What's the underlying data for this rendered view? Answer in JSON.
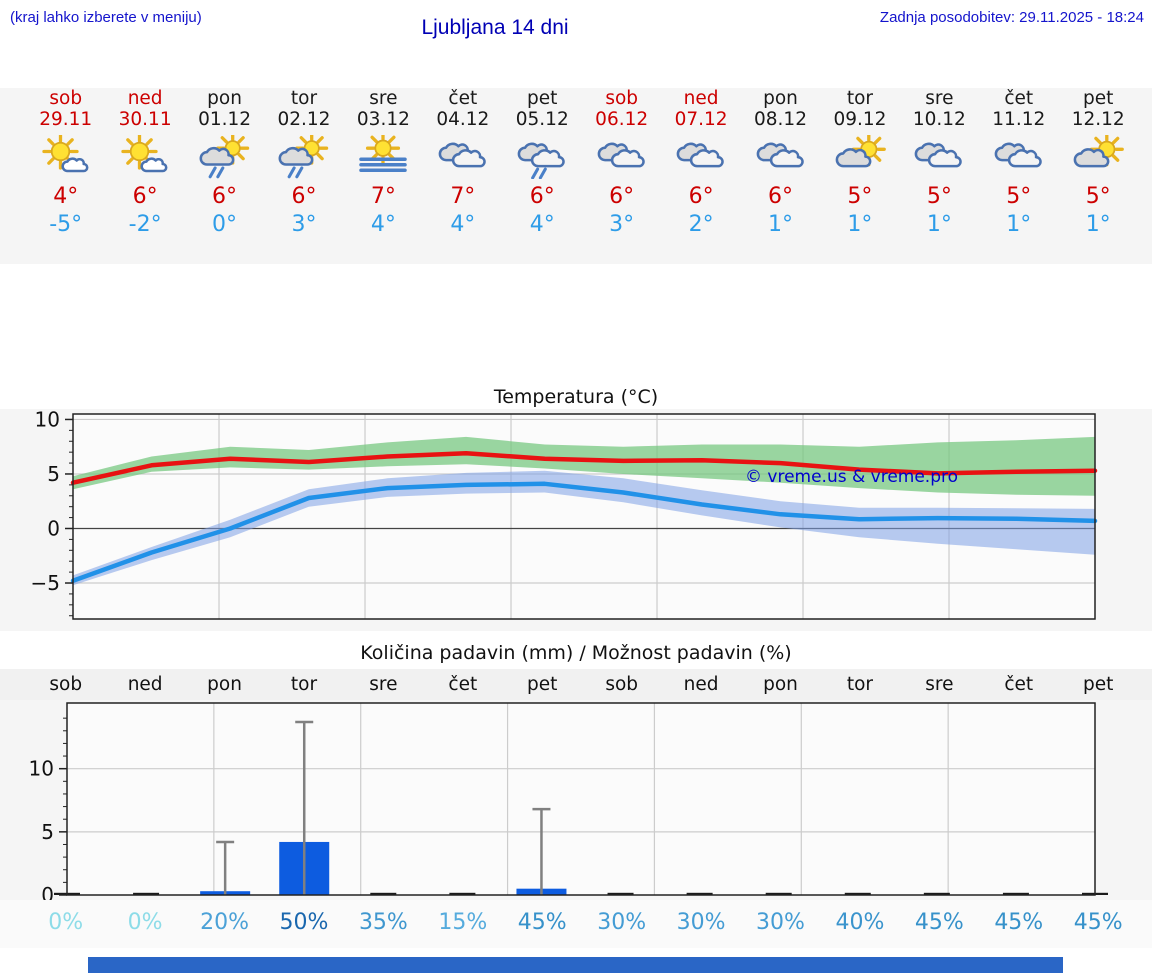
{
  "header": {
    "hint": "(kraj lahko izberete v meniju)",
    "title": "Ljubljana 14 dni",
    "updated": "Zadnja posodobitev: 29.11.2025 - 18:24"
  },
  "strip": {
    "days": [
      {
        "name": "sob",
        "date": "29.11",
        "holiday": true,
        "icon": "mostly-sunny",
        "high": "4°",
        "low": "-5°"
      },
      {
        "name": "ned",
        "date": "30.11",
        "holiday": true,
        "icon": "mostly-sunny",
        "high": "6°",
        "low": "-2°"
      },
      {
        "name": "pon",
        "date": "01.12",
        "holiday": false,
        "icon": "sun-rain",
        "high": "6°",
        "low": "0°"
      },
      {
        "name": "tor",
        "date": "02.12",
        "holiday": false,
        "icon": "sun-rain",
        "high": "6°",
        "low": "3°"
      },
      {
        "name": "sre",
        "date": "03.12",
        "holiday": false,
        "icon": "fog-sun",
        "high": "7°",
        "low": "4°"
      },
      {
        "name": "čet",
        "date": "04.12",
        "holiday": false,
        "icon": "cloudy",
        "high": "7°",
        "low": "4°"
      },
      {
        "name": "pet",
        "date": "05.12",
        "holiday": false,
        "icon": "rain",
        "high": "6°",
        "low": "4°"
      },
      {
        "name": "sob",
        "date": "06.12",
        "holiday": true,
        "icon": "cloudy",
        "high": "6°",
        "low": "3°"
      },
      {
        "name": "ned",
        "date": "07.12",
        "holiday": true,
        "icon": "cloudy",
        "high": "6°",
        "low": "2°"
      },
      {
        "name": "pon",
        "date": "08.12",
        "holiday": false,
        "icon": "cloudy",
        "high": "6°",
        "low": "1°"
      },
      {
        "name": "tor",
        "date": "09.12",
        "holiday": false,
        "icon": "sun-cloud",
        "high": "5°",
        "low": "1°"
      },
      {
        "name": "sre",
        "date": "10.12",
        "holiday": false,
        "icon": "cloudy",
        "high": "5°",
        "low": "1°"
      },
      {
        "name": "čet",
        "date": "11.12",
        "holiday": false,
        "icon": "cloudy",
        "high": "5°",
        "low": "1°"
      },
      {
        "name": "pet",
        "date": "12.12",
        "holiday": false,
        "icon": "sun-cloud",
        "high": "5°",
        "low": "1°"
      }
    ]
  },
  "chart_data": [
    {
      "type": "line",
      "title": "Temperatura (°C)",
      "ylim": [
        -8.3,
        10.5
      ],
      "yticks": [
        10,
        5,
        0,
        -5
      ],
      "categories": [
        "sob",
        "ned",
        "pon",
        "tor",
        "sre",
        "čet",
        "pet",
        "sob",
        "ned",
        "pon",
        "tor",
        "sre",
        "čet",
        "pet"
      ],
      "series": [
        {
          "name": "max-temp",
          "color": "#e81212",
          "values": [
            4.2,
            5.8,
            6.4,
            6.1,
            6.6,
            6.9,
            6.4,
            6.2,
            6.25,
            6.0,
            5.4,
            5.05,
            5.2,
            5.3
          ]
        },
        {
          "name": "min-temp",
          "color": "#2191e8",
          "values": [
            -4.8,
            -2.2,
            0.0,
            2.8,
            3.7,
            4.0,
            4.1,
            3.3,
            2.2,
            1.3,
            0.85,
            0.95,
            0.9,
            0.7
          ]
        }
      ],
      "bands": [
        {
          "name": "min-temp-range",
          "color": "rgba(125,160,230,0.55)",
          "top": [
            -4.3,
            -1.7,
            0.8,
            3.6,
            4.6,
            5.1,
            5.3,
            4.6,
            3.5,
            2.5,
            1.9,
            1.9,
            1.85,
            1.8
          ],
          "bottom": [
            -5.2,
            -2.9,
            -0.8,
            2.0,
            2.9,
            3.2,
            3.3,
            2.4,
            1.2,
            0.1,
            -0.8,
            -1.4,
            -1.9,
            -2.4
          ]
        },
        {
          "name": "max-temp-range",
          "color": "rgba(115,198,125,0.72)",
          "top": [
            4.8,
            6.6,
            7.5,
            7.2,
            7.9,
            8.4,
            7.7,
            7.5,
            7.7,
            7.7,
            7.5,
            7.9,
            8.1,
            8.4
          ],
          "bottom": [
            3.6,
            5.2,
            5.6,
            5.4,
            5.7,
            5.9,
            5.5,
            5.0,
            4.6,
            4.2,
            3.7,
            3.3,
            3.1,
            3.0
          ]
        }
      ],
      "watermark": "© vreme.us & vreme.pro"
    },
    {
      "type": "bar",
      "title": "Količina padavin (mm) / Možnost padavin (%)",
      "categories": [
        "sob",
        "ned",
        "pon",
        "tor",
        "sre",
        "čet",
        "pet",
        "sob",
        "ned",
        "pon",
        "tor",
        "sre",
        "čet",
        "pet"
      ],
      "values": [
        0,
        0,
        0.3,
        4.2,
        0,
        0,
        0.5,
        0,
        0,
        0,
        0,
        0,
        0,
        0
      ],
      "error_max": [
        0,
        0,
        4.2,
        13.7,
        0,
        0,
        6.8,
        0,
        0,
        0,
        0,
        0,
        0,
        0
      ],
      "percent": [
        {
          "label": "0%",
          "color": "#8ddce8"
        },
        {
          "label": "0%",
          "color": "#8ddce8"
        },
        {
          "label": "20%",
          "color": "#4ba1d7"
        },
        {
          "label": "50%",
          "color": "#1a67ae"
        },
        {
          "label": "35%",
          "color": "#3f97cf"
        },
        {
          "label": "15%",
          "color": "#55abdd"
        },
        {
          "label": "45%",
          "color": "#3691ca"
        },
        {
          "label": "30%",
          "color": "#449cd4"
        },
        {
          "label": "30%",
          "color": "#449cd4"
        },
        {
          "label": "30%",
          "color": "#449cd4"
        },
        {
          "label": "40%",
          "color": "#3a94cd"
        },
        {
          "label": "45%",
          "color": "#3691ca"
        },
        {
          "label": "45%",
          "color": "#3691ca"
        },
        {
          "label": "45%",
          "color": "#3691ca"
        }
      ],
      "ylim": [
        0,
        15.2
      ],
      "yticks": [
        0,
        5,
        10
      ],
      "bar_color": "#0d5ce0",
      "error_color": "#808080"
    }
  ],
  "footer": {
    "bar_color": "#2a66c6"
  }
}
